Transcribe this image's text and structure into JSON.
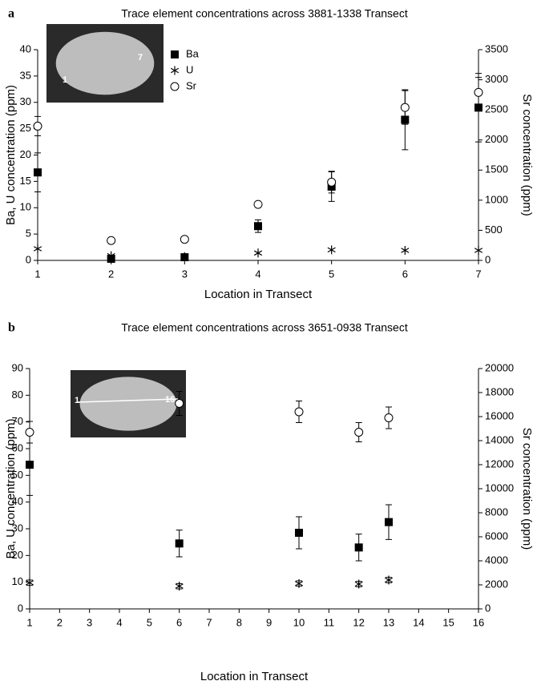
{
  "chart_data": [
    {
      "type": "scatter",
      "panel": "a",
      "title": "Trace element concentrations across 3881-1338 Transect",
      "xlabel": "Location in Transect",
      "ylabel": "Ba, U concentration (ppm)",
      "y2label": "Sr concentration (ppm)",
      "inset_labels": [
        "1",
        "7"
      ],
      "legend": "top",
      "x": [
        1,
        2,
        3,
        4,
        5,
        6,
        7
      ],
      "xlim": [
        1,
        7
      ],
      "xticks": [
        1,
        2,
        3,
        4,
        5,
        6,
        7
      ],
      "ylim": [
        0,
        40
      ],
      "yticks": [
        0,
        5,
        10,
        15,
        20,
        25,
        30,
        35,
        40
      ],
      "y2lim": [
        0,
        3500
      ],
      "y2ticks": [
        0,
        500,
        1000,
        1500,
        2000,
        2500,
        3000,
        3500
      ],
      "series": [
        {
          "name": "Ba",
          "color": "#000000",
          "marker": "square",
          "values": [
            16.7,
            0.3,
            0.6,
            6.5,
            14,
            26.7,
            29
          ],
          "errors": [
            3.7,
            0.2,
            0.3,
            1.2,
            2.8,
            5.7,
            6.5
          ]
        },
        {
          "name": "U",
          "color": "#000000",
          "marker": "asterisk",
          "values": [
            2.2,
            0.9,
            0.7,
            1.4,
            2.0,
            1.9,
            1.9
          ]
        },
        {
          "name": "Sr",
          "color": "#000000",
          "marker": "circle",
          "axis": "y2",
          "values": [
            2230,
            330,
            350,
            930,
            1300,
            2540,
            2790
          ],
          "errors": [
            160,
            20,
            20,
            40,
            180,
            280,
            250
          ]
        }
      ]
    },
    {
      "type": "scatter",
      "panel": "b",
      "title": "Trace element concentrations across 3651-0938 Transect",
      "xlabel": "Location in Transect",
      "ylabel": "Ba, U concentration (ppm)",
      "y2label": "Sr concentration (ppm)",
      "inset_labels": [
        "1",
        "16"
      ],
      "legend": false,
      "x": [
        1,
        6,
        10,
        12,
        13
      ],
      "xlim": [
        1,
        16
      ],
      "xticks": [
        1,
        2,
        3,
        4,
        5,
        6,
        7,
        8,
        9,
        10,
        11,
        12,
        13,
        14,
        15,
        16
      ],
      "ylim": [
        0,
        90
      ],
      "yticks": [
        0,
        10,
        20,
        30,
        40,
        50,
        60,
        70,
        80,
        90
      ],
      "y2lim": [
        0,
        20000
      ],
      "y2ticks": [
        0,
        2000,
        4000,
        6000,
        8000,
        10000,
        12000,
        14000,
        16000,
        18000,
        20000
      ],
      "series": [
        {
          "color": "#000000",
          "marker": "square",
          "values": [
            54,
            24.5,
            28.5,
            23,
            32.5
          ],
          "errors": [
            11.5,
            5,
            6,
            5,
            6.5
          ]
        },
        {
          "color": "#000000",
          "marker": "asterisk",
          "values": [
            9.8,
            8.5,
            9.5,
            9.3,
            10.8
          ],
          "errors": [
            1,
            1,
            1,
            1,
            1
          ]
        },
        {
          "color": "#000000",
          "marker": "circle",
          "axis": "y2",
          "values": [
            14700,
            17100,
            16400,
            14700,
            15900
          ],
          "errors": [
            900,
            1000,
            900,
            800,
            900
          ]
        }
      ]
    }
  ]
}
